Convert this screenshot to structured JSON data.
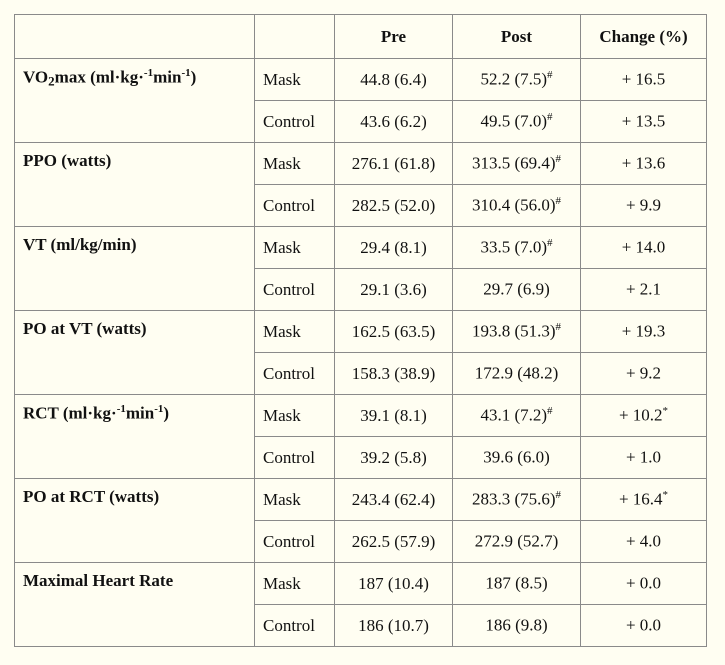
{
  "headers": [
    "",
    "",
    "Pre",
    "Post",
    "Change (%)"
  ],
  "rows": [
    {
      "variable": {
        "main": "VO",
        "sub": "2",
        "rest": "max (ml·kg·",
        "sup1": "-1",
        "mid": "min",
        "sup2": "-1",
        "end": ")"
      },
      "groups": [
        {
          "group": "Mask",
          "pre": "44.8 (6.4)",
          "post": "52.2 (7.5)",
          "post_mark": "#",
          "change": "+ 16.5",
          "change_mark": ""
        },
        {
          "group": "Control",
          "pre": "43.6 (6.2)",
          "post": "49.5 (7.0)",
          "post_mark": "#",
          "change": "+ 13.5",
          "change_mark": ""
        }
      ]
    },
    {
      "variable": {
        "main": "PPO (watts)"
      },
      "groups": [
        {
          "group": "Mask",
          "pre": "276.1 (61.8)",
          "post": "313.5 (69.4)",
          "post_mark": "#",
          "change": "+ 13.6",
          "change_mark": ""
        },
        {
          "group": "Control",
          "pre": "282.5 (52.0)",
          "post": "310.4 (56.0)",
          "post_mark": "#",
          "change": "+ 9.9",
          "change_mark": ""
        }
      ]
    },
    {
      "variable": {
        "main": "VT (ml/kg/min)"
      },
      "groups": [
        {
          "group": "Mask",
          "pre": "29.4 (8.1)",
          "post": "33.5 (7.0)",
          "post_mark": "#",
          "change": "+ 14.0",
          "change_mark": ""
        },
        {
          "group": "Control",
          "pre": "29.1 (3.6)",
          "post": "29.7 (6.9)",
          "post_mark": "",
          "change": "+ 2.1",
          "change_mark": ""
        }
      ]
    },
    {
      "variable": {
        "main": "PO at VT (watts)"
      },
      "groups": [
        {
          "group": "Mask",
          "pre": "162.5 (63.5)",
          "post": "193.8 (51.3)",
          "post_mark": "#",
          "change": "+ 19.3",
          "change_mark": ""
        },
        {
          "group": "Control",
          "pre": "158.3 (38.9)",
          "post": "172.9 (48.2)",
          "post_mark": "",
          "change": "+ 9.2",
          "change_mark": ""
        }
      ]
    },
    {
      "variable": {
        "main": "RCT (ml·kg·",
        "sup1": "-1",
        "mid": "min",
        "sup2": "-1",
        "end": ")"
      },
      "groups": [
        {
          "group": "Mask",
          "pre": "39.1 (8.1)",
          "post": "43.1 (7.2)",
          "post_mark": "#",
          "change": "+ 10.2",
          "change_mark": "*"
        },
        {
          "group": "Control",
          "pre": "39.2 (5.8)",
          "post": "39.6 (6.0)",
          "post_mark": "",
          "change": "+ 1.0",
          "change_mark": ""
        }
      ]
    },
    {
      "variable": {
        "main": "PO at RCT (watts)"
      },
      "groups": [
        {
          "group": "Mask",
          "pre": "243.4 (62.4)",
          "post": "283.3 (75.6)",
          "post_mark": "#",
          "change": "+ 16.4",
          "change_mark": "*"
        },
        {
          "group": "Control",
          "pre": "262.5 (57.9)",
          "post": "272.9 (52.7)",
          "post_mark": "",
          "change": "+ 4.0",
          "change_mark": ""
        }
      ]
    },
    {
      "variable": {
        "main": "Maximal Heart Rate"
      },
      "groups": [
        {
          "group": "Mask",
          "pre": "187 (10.4)",
          "post": "187 (8.5)",
          "post_mark": "",
          "change": "+ 0.0",
          "change_mark": ""
        },
        {
          "group": "Control",
          "pre": "186 (10.7)",
          "post": "186 (9.8)",
          "post_mark": "",
          "change": "+ 0.0",
          "change_mark": ""
        }
      ]
    }
  ]
}
